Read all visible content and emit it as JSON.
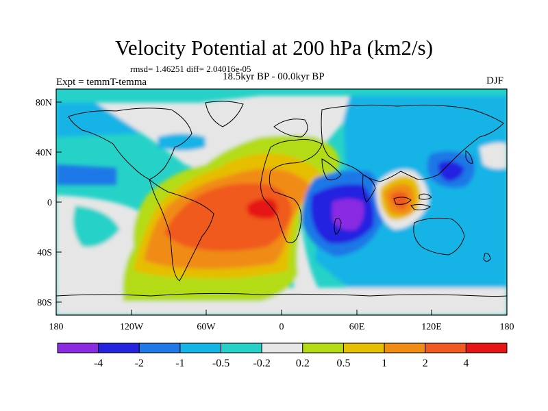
{
  "figure": {
    "title": "Velocity Potential at 200 hPa (km2/s)",
    "stats": "rmsd= 1.46251 diff= 2.04016e-05",
    "experiment": "Expt = temmT-temma",
    "period": "18.5kyr BP - 00.0kyr BP",
    "season": "DJF"
  },
  "map": {
    "projection": "cylindrical equidistant",
    "lon_range": [
      -180,
      180
    ],
    "lat_range": [
      -90,
      90
    ],
    "lat_ticks": [
      "80N",
      "40N",
      "0",
      "40S",
      "80S"
    ],
    "lon_ticks": [
      "180",
      "120W",
      "60W",
      "0",
      "60E",
      "120E",
      "180"
    ],
    "features": [
      {
        "name": "strong positive anomaly",
        "level": "2 to 4+",
        "region": "tropical South Atlantic"
      },
      {
        "name": "strong negative anomaly",
        "level": "below -4",
        "region": "western Indian Ocean / Madagascar"
      },
      {
        "name": "positive anomaly",
        "level": "1 to 4",
        "region": "Maritime Continent"
      },
      {
        "name": "negative anomaly",
        "level": "-2 to -1",
        "region": "western North Pacific"
      }
    ]
  },
  "colorbar": {
    "labels": [
      "-4",
      "-2",
      "-1",
      "-0.5",
      "-0.2",
      "0.2",
      "0.5",
      "1",
      "2",
      "4"
    ],
    "colors": [
      "#8a2be2",
      "#2424e0",
      "#1e78e6",
      "#14b4e6",
      "#26d2c8",
      "#e6e6e6",
      "#b4dc14",
      "#e6be00",
      "#f08c14",
      "#f05a1e",
      "#e61414"
    ]
  }
}
